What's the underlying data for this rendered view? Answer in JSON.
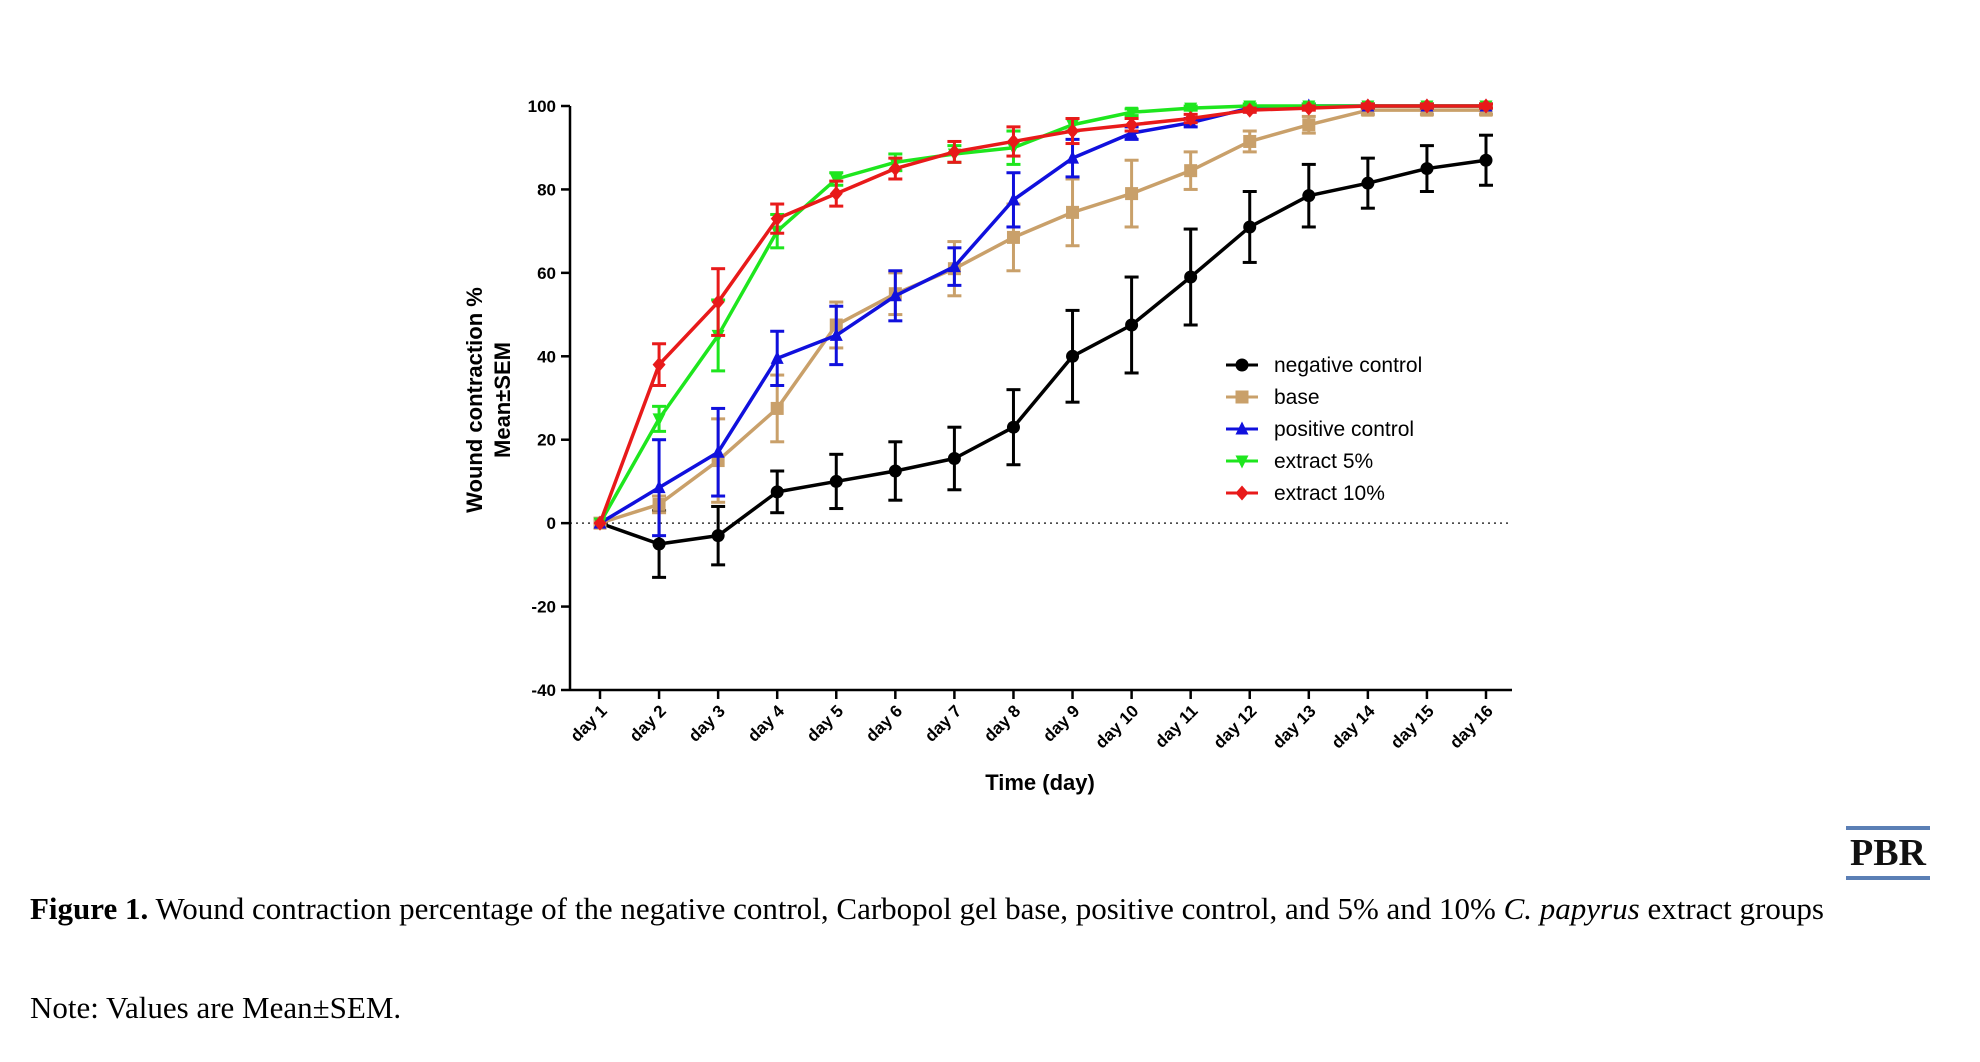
{
  "chart_data": {
    "type": "line",
    "title": "",
    "xlabel": "Time (day)",
    "ylabel": [
      "Wound contraction %",
      "Mean±SEM"
    ],
    "ylim": [
      -40,
      100
    ],
    "yticks": [
      -40,
      -20,
      0,
      20,
      40,
      60,
      80,
      100
    ],
    "categories": [
      "day 1",
      "day 2",
      "day 3",
      "day 4",
      "day 5",
      "day 6",
      "day 7",
      "day 8",
      "day 9",
      "day 10",
      "day 11",
      "day 12",
      "day 13",
      "day 14",
      "day 15",
      "day 16"
    ],
    "reference_line": 0,
    "legend_position": "center-right",
    "series": [
      {
        "name": "negative control",
        "color": "#000000",
        "marker": "circle",
        "values": [
          0,
          -5,
          -3,
          7.5,
          10,
          12.5,
          15.5,
          23,
          40,
          47.5,
          59,
          71,
          78.5,
          81.5,
          85,
          87
        ],
        "errors": [
          0,
          8,
          7,
          5,
          6.5,
          7,
          7.5,
          9,
          11,
          11.5,
          11.5,
          8.5,
          7.5,
          6,
          5.5,
          6
        ]
      },
      {
        "name": "base",
        "color": "#c9a06a",
        "marker": "square",
        "values": [
          0,
          4.5,
          15,
          27.5,
          47.5,
          55,
          61,
          68.5,
          74.5,
          79,
          84.5,
          91.5,
          95.5,
          99,
          99,
          99
        ],
        "errors": [
          0,
          2,
          10,
          8,
          5.5,
          5,
          6.5,
          8,
          8,
          8,
          4.5,
          2.5,
          2,
          1,
          1,
          1
        ]
      },
      {
        "name": "positive control",
        "color": "#1010dd",
        "marker": "triangle",
        "values": [
          0,
          8.5,
          17,
          39.5,
          45,
          54.5,
          61.5,
          77.5,
          87.5,
          93.5,
          96,
          99.5,
          100,
          100,
          100,
          100
        ],
        "errors": [
          0,
          11.5,
          10.5,
          6.5,
          7,
          6,
          4.5,
          6.5,
          4.5,
          1.5,
          1,
          0.5,
          0.5,
          0.5,
          0.5,
          0.5
        ]
      },
      {
        "name": "extract 5%",
        "color": "#1ee61e",
        "marker": "triangle-down",
        "values": [
          0,
          25,
          45,
          70,
          82.5,
          86.5,
          88.5,
          90,
          95.5,
          98.5,
          99.5,
          100,
          100,
          100,
          100,
          100
        ],
        "errors": [
          0,
          3,
          8.5,
          4,
          1.5,
          2,
          2,
          4,
          1.5,
          0.8,
          0.5,
          0.5,
          0.5,
          0.5,
          0.5,
          0.5
        ]
      },
      {
        "name": "extract 10%",
        "color": "#e81a1a",
        "marker": "diamond",
        "values": [
          0,
          38,
          53,
          73,
          79,
          85,
          89,
          91.5,
          94,
          95.5,
          97,
          99,
          99.5,
          100,
          100,
          100
        ],
        "errors": [
          0,
          5,
          8,
          3.5,
          3,
          2.5,
          2.5,
          3.5,
          3,
          1.5,
          1,
          0.5,
          0.5,
          0.5,
          0.5,
          0.5
        ]
      }
    ]
  },
  "logo_text": "PBR",
  "caption": {
    "label": "Figure 1.",
    "text_before": " Wound contraction percentage of the negative control, Carbopol gel base, positive control, and 5% and 10% ",
    "species": "C. papyrus",
    "text_after": " extract groups"
  },
  "note": "Note: Values are Mean±SEM."
}
